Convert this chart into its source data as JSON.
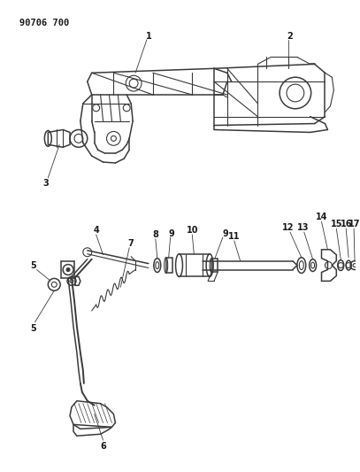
{
  "title_label": "90706 700",
  "background_color": "#ffffff",
  "line_color": "#3a3a3a",
  "label_color": "#1a1a1a",
  "fig_width": 4.07,
  "fig_height": 5.33,
  "dpi": 100
}
